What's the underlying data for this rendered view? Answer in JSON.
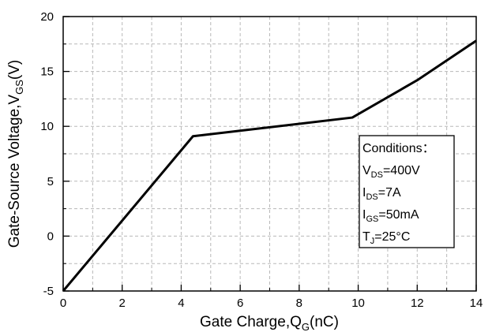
{
  "chart_data": {
    "type": "line",
    "xlabel": {
      "main": "Gate Charge,Q",
      "sub": "G",
      "tail": "(nC)"
    },
    "ylabel": {
      "main": "Gate-Source Voltage,V",
      "sub": "GS",
      "tail": "(V)"
    },
    "xlim": [
      0,
      14
    ],
    "ylim": [
      -5,
      20
    ],
    "xticks": [
      0,
      2,
      4,
      6,
      8,
      10,
      12,
      14
    ],
    "yticks": [
      -5,
      0,
      5,
      10,
      15,
      20
    ],
    "grid": true,
    "series": [
      {
        "x": [
          0.0,
          4.4,
          9.8,
          12.0,
          14.0
        ],
        "y": [
          -5.0,
          9.1,
          10.8,
          14.2,
          17.8
        ]
      }
    ],
    "line_color": "#000000",
    "annotation": {
      "placement": "right",
      "lines": [
        {
          "main": "Conditions：",
          "sub": "",
          "tail": ""
        },
        {
          "main": "V",
          "sub": "DS",
          "tail": "=400V"
        },
        {
          "main": "I",
          "sub": "DS",
          "tail": "=7A"
        },
        {
          "main": "I",
          "sub": "GS",
          "tail": "=50mA"
        },
        {
          "main": "T",
          "sub": "J",
          "tail": "=25°C"
        }
      ]
    }
  }
}
